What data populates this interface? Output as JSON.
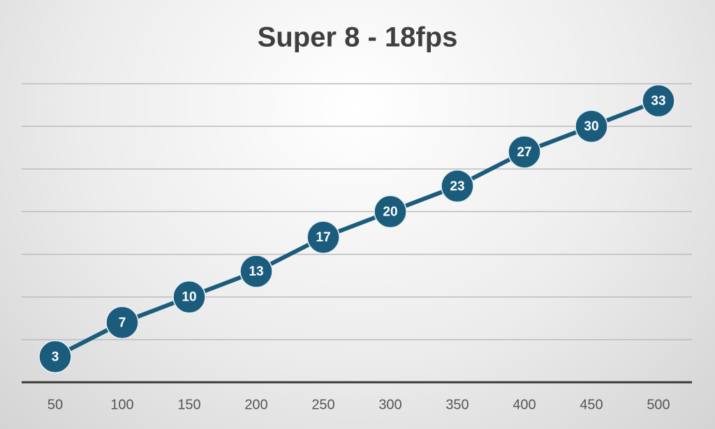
{
  "chart_data": {
    "type": "line",
    "title": "Super 8 - 18fps",
    "categories": [
      "50",
      "100",
      "150",
      "200",
      "250",
      "300",
      "350",
      "400",
      "450",
      "500"
    ],
    "values": [
      3,
      7,
      10,
      13,
      17,
      20,
      23,
      27,
      30,
      33
    ],
    "color": "#1b5c7d",
    "ylim": [
      0,
      35
    ],
    "yticks": [
      0,
      5,
      10,
      15,
      20,
      25,
      30,
      35
    ],
    "grid": true,
    "data_labels": true
  }
}
